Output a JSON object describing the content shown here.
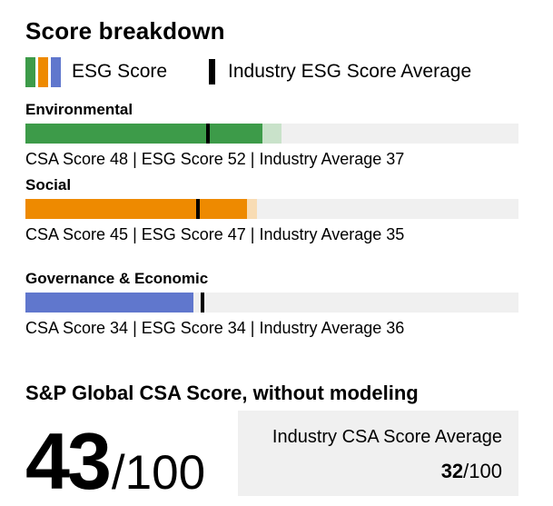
{
  "page": {
    "background": "#ffffff"
  },
  "header": {
    "title": "Score breakdown"
  },
  "legend": {
    "esg_score_label": "ESG Score",
    "industry_average_label": "Industry ESG Score Average",
    "swatch_colors": [
      "#3d9b49",
      "#ee8a00",
      "#6077cd"
    ],
    "marker_color": "#000000"
  },
  "track_color": "#f0f0f0",
  "sections": [
    {
      "label": "Environmental",
      "csa_score": 48,
      "esg_score": 52,
      "industry_average": 37,
      "detail": "CSA Score 48 | ESG Score 52 | Industry Average 37",
      "bar_color": "#3d9b49",
      "bar_color_light": "#c9e2ca"
    },
    {
      "label": "Social",
      "csa_score": 45,
      "esg_score": 47,
      "industry_average": 35,
      "detail": "CSA Score 45 | ESG Score 47 | Industry Average 35",
      "bar_color": "#ee8a00",
      "bar_color_light": "#f8dcb4"
    },
    {
      "label": "Governance & Economic",
      "csa_score": 34,
      "esg_score": 34,
      "industry_average": 36,
      "detail": "CSA Score 34 | ESG Score 34 | Industry Average 36",
      "bar_color": "#6077cd",
      "bar_color_light": "#cdd5f0"
    }
  ],
  "summary": {
    "heading": "S&P Global CSA Score, without modeling",
    "score_value": "43",
    "score_suffix": "/100",
    "industry_box": {
      "label": "Industry CSA Score Average",
      "value": "32",
      "suffix": "/100",
      "background": "#f0f0f0"
    }
  },
  "chart_data": {
    "type": "bar",
    "orientation": "horizontal",
    "title": "Score breakdown",
    "categories": [
      "Environmental",
      "Social",
      "Governance & Economic"
    ],
    "series": [
      {
        "name": "CSA Score",
        "values": [
          48,
          45,
          34
        ]
      },
      {
        "name": "ESG Score",
        "values": [
          52,
          47,
          34
        ]
      },
      {
        "name": "Industry Average",
        "values": [
          37,
          35,
          36
        ]
      }
    ],
    "xlim": [
      0,
      100
    ],
    "grid": false,
    "legend_entries": [
      "ESG Score",
      "Industry ESG Score Average"
    ],
    "summary_scores": {
      "sp_global_csa_score": 43,
      "industry_csa_average": 32,
      "scale": 100
    }
  }
}
